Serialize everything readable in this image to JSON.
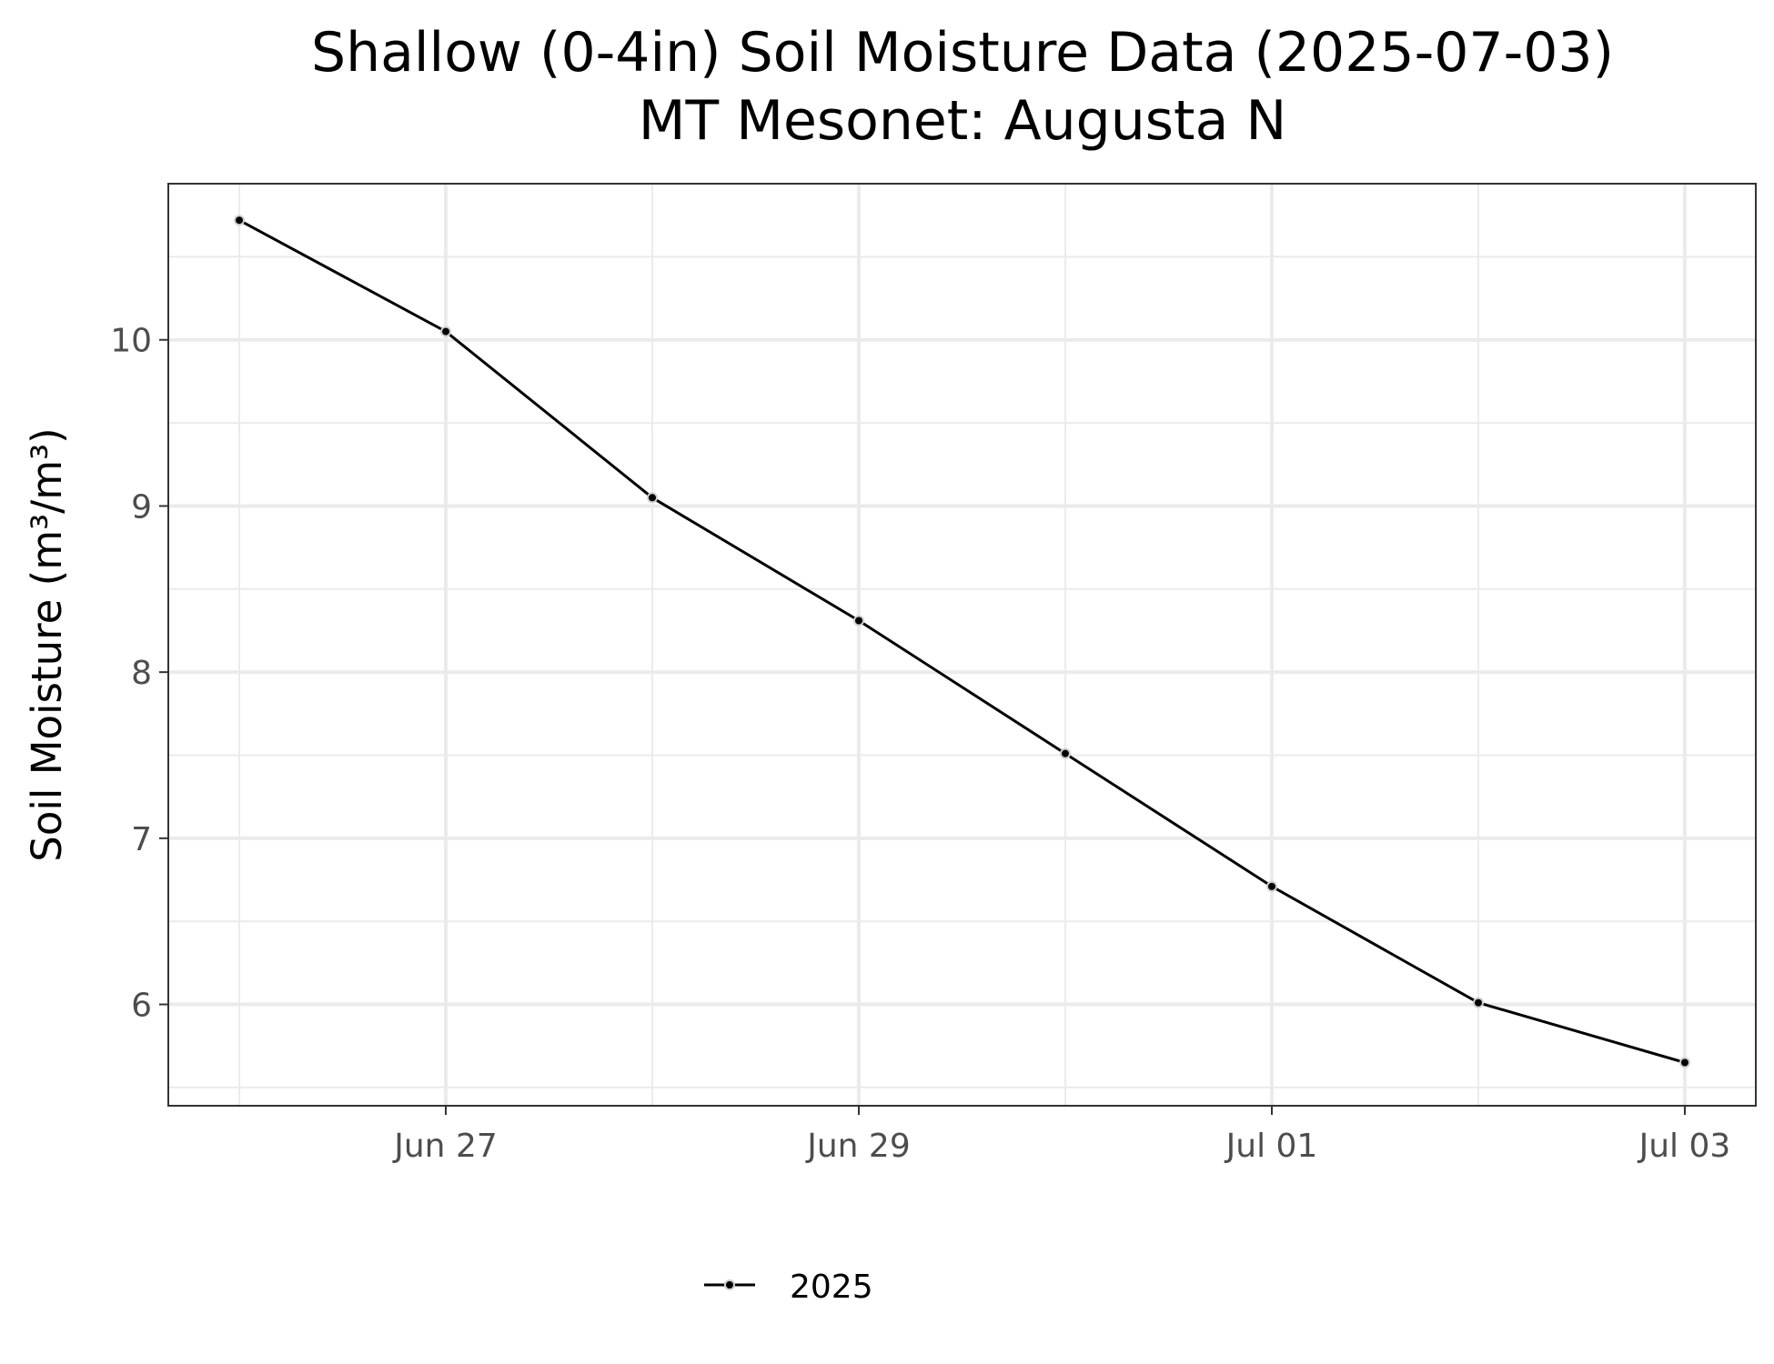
{
  "chart_data": {
    "type": "line",
    "title": "Shallow (0-4in) Soil Moisture Data (2025-07-03)",
    "subtitle": "MT Mesonet: Augusta N",
    "xlabel": "",
    "ylabel": "Soil Moisture (m³/m³)",
    "x": [
      "2025-06-26",
      "2025-06-27",
      "2025-06-28",
      "2025-06-29",
      "2025-06-30",
      "2025-07-01",
      "2025-07-02",
      "2025-07-03"
    ],
    "x_ticks": [
      "2025-06-27",
      "2025-06-29",
      "2025-07-01",
      "2025-07-03"
    ],
    "x_tick_labels": [
      "Jun 27",
      "Jun 29",
      "Jul 01",
      "Jul 03"
    ],
    "xlim": [
      "2025-06-25T15:45:00",
      "2025-07-03T08:15:00"
    ],
    "ylim": [
      5.39,
      10.94
    ],
    "y_ticks": [
      6,
      7,
      8,
      9,
      10
    ],
    "grid": true,
    "legend": "bottom",
    "series": [
      {
        "name": "2025",
        "color": "#000000",
        "values": [
          10.72,
          10.05,
          9.05,
          8.31,
          7.51,
          6.71,
          6.01,
          5.65
        ]
      }
    ]
  }
}
